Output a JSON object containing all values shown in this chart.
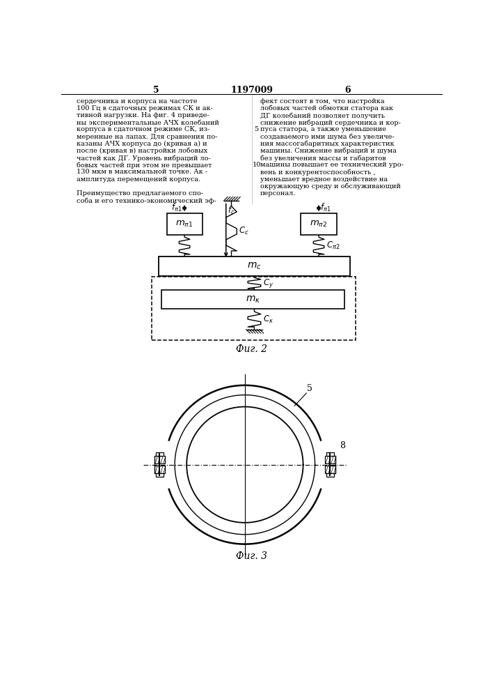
{
  "bg_color": "#ffffff",
  "fig2_caption": "Фиг. 2",
  "fig3_caption": "Фиг. 3",
  "page_number_left": "5",
  "page_number_center": "1197009",
  "page_number_right": "6",
  "text_left": "сердечника и корпуса на частоте\n100 Гц в сдаточных режимах СК и ак-\nтивной нагрузки. На фиг. 4 приведе-\nны экспериментальные АЧХ колебаний\nкорпуса в сдаточном режиме СК, из-\nмеренные на лапах. Для сравнения по-\nказаны АЧХ корпуса до (кривая а) и\nпосле (кривая в) настройки лобовых\nчастей как ДГ. Уровень вибраций ло-\nбовых частей при этом не превышает\n130 мкм в максимальной точке. Ак -\nамплитуда перемещений корпуса.\n\nПреимущество предлагаемого спо-\nсоба и его технико-экономический эф-",
  "text_right": "фект состоят в том, что настройка\nлобовых частей обмотки статора как\nДГ колебаний позволяет получить\nснижение вибраций сердечника и кор-\nпуса статора, а также уменьшение\nсоздаваемого ими шума без увеличе-\nния массогабаритных характеристик\nмашины. Снижение вибраций и шума\nбез увеличения массы и габаритов\nмашины повышает ее технический уро-\nвень и конкурентоспособность ,\nуменьшает вредное воздействие на\nокружающую среду и обслуживающий\nперсонал."
}
